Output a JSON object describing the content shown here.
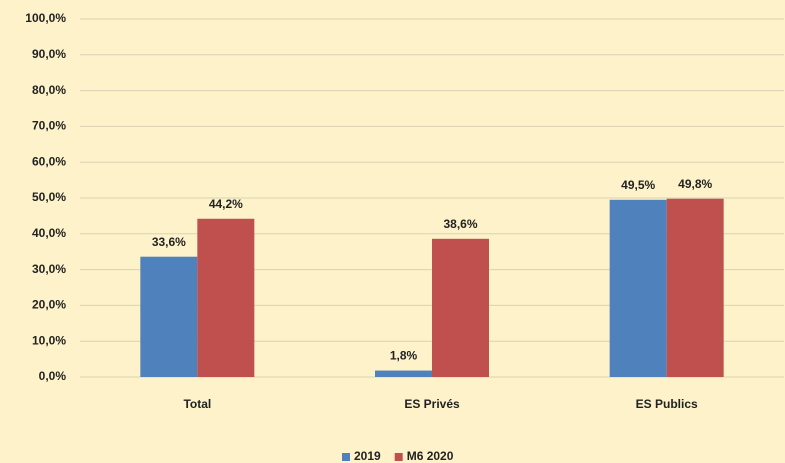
{
  "chart_data": {
    "type": "bar",
    "categories": [
      "Total",
      "ES Privés",
      "ES Publics"
    ],
    "series": [
      {
        "name": "2019",
        "color": "#4f81bd",
        "values": [
          33.6,
          1.8,
          49.5
        ],
        "value_labels": [
          "33,6%",
          "1,8%",
          "49,5%"
        ]
      },
      {
        "name": "M6 2020",
        "color": "#c0504d",
        "values": [
          44.2,
          38.6,
          49.8
        ],
        "value_labels": [
          "44,2%",
          "38,6%",
          "49,8%"
        ]
      }
    ],
    "ylim": [
      0,
      100
    ],
    "yticks": [
      {
        "value": 0,
        "label": "0,0%"
      },
      {
        "value": 10,
        "label": "10,0%"
      },
      {
        "value": 20,
        "label": "20,0%"
      },
      {
        "value": 30,
        "label": "30,0%"
      },
      {
        "value": 40,
        "label": "40,0%"
      },
      {
        "value": 50,
        "label": "50,0%"
      },
      {
        "value": 60,
        "label": "60,0%"
      },
      {
        "value": 70,
        "label": "70,0%"
      },
      {
        "value": 80,
        "label": "80,0%"
      },
      {
        "value": 90,
        "label": "90,0%"
      },
      {
        "value": 100,
        "label": "100,0%"
      }
    ],
    "grid": true,
    "legend": "bottom"
  }
}
